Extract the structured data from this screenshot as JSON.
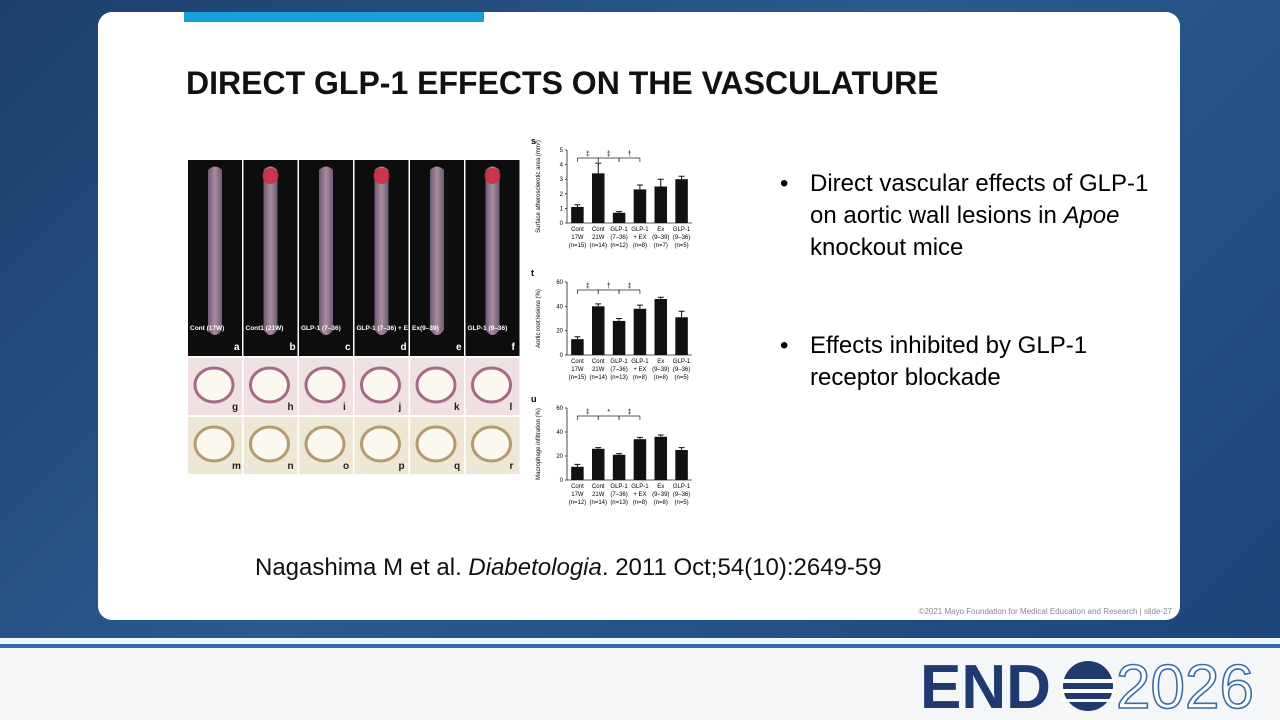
{
  "slide": {
    "title": "DIRECT GLP-1 EFFECTS ON THE VASCULATURE",
    "bullets": [
      {
        "parts": [
          {
            "text": "Direct vascular effects of GLP-1 on aortic wall lesions in "
          },
          {
            "text": "Apoe",
            "italic": true
          },
          {
            "text": " knockout mice"
          }
        ]
      },
      {
        "parts": [
          {
            "text": "Effects inhibited by GLP-1 receptor blockade"
          }
        ]
      }
    ],
    "citation": {
      "parts": [
        {
          "text": "Nagashima M et al. "
        },
        {
          "text": "Diabetologia",
          "italic": true
        },
        {
          "text": ". 2011 Oct;54(10):2649-59"
        }
      ]
    },
    "footer": "©2021 Mayo Foundation for Medical Education and Research  |  slide-27",
    "figure": {
      "photo_panels": [
        {
          "letter": "a",
          "name": "Cont (17W)"
        },
        {
          "letter": "b",
          "name": "Cont1 (21W)"
        },
        {
          "letter": "c",
          "name": "GLP-1 (7–36)"
        },
        {
          "letter": "d",
          "name": "GLP-1 (7–36) + Ex(9–39)"
        },
        {
          "letter": "e",
          "name": "Ex(9–39)"
        },
        {
          "letter": "f",
          "name": "GLP-1 (9–36)"
        }
      ],
      "histology_rows": [
        [
          "g",
          "h",
          "i",
          "j",
          "k",
          "l"
        ],
        [
          "m",
          "n",
          "o",
          "p",
          "q",
          "r"
        ]
      ],
      "charts": [
        {
          "type": "bar",
          "panel": "s",
          "ylabel": "Surface atherosclerotic area (mm²)",
          "color": "#111111",
          "ylim": [
            0,
            5
          ],
          "yticks": [
            0,
            1,
            2,
            3,
            4,
            5
          ],
          "values": [
            1.1,
            3.4,
            0.7,
            2.3,
            2.5,
            3.0
          ],
          "errors": [
            0.15,
            0.7,
            0.08,
            0.3,
            0.5,
            0.2
          ],
          "significance": [
            "‡",
            "‡",
            "†"
          ],
          "categories": [
            [
              "Cont",
              "17W",
              "(n=15)"
            ],
            [
              "Cont",
              "21W",
              "(n=14)"
            ],
            [
              "GLP-1",
              "(7–36)",
              "(n=12)"
            ],
            [
              "GLP-1",
              "+ EX",
              "(n=8)"
            ],
            [
              "Ex",
              "(9–39)",
              "(n=7)"
            ],
            [
              "GLP-1",
              "(9–36)",
              "(n=5)"
            ]
          ]
        },
        {
          "type": "bar",
          "panel": "t",
          "ylabel": "Aortic root lesions (%)",
          "color": "#111111",
          "ylim": [
            0,
            60
          ],
          "yticks": [
            0,
            20,
            40,
            60
          ],
          "values": [
            13,
            40,
            28,
            38,
            46,
            31
          ],
          "errors": [
            2,
            2,
            2,
            3,
            1.5,
            5
          ],
          "significance": [
            "‡",
            "†",
            "‡"
          ],
          "categories": [
            [
              "Cont",
              "17W",
              "(n=15)"
            ],
            [
              "Cont",
              "21W",
              "(n=14)"
            ],
            [
              "GLP-1",
              "(7–36)",
              "(n=13)"
            ],
            [
              "GLP-1",
              "+ EX",
              "(n=8)"
            ],
            [
              "Ex",
              "(9–39)",
              "(n=8)"
            ],
            [
              "GLP-1",
              "(9–36)",
              "(n=5)"
            ]
          ]
        },
        {
          "type": "bar",
          "panel": "u",
          "ylabel": "Macrophage infiltration (%)",
          "color": "#111111",
          "ylim": [
            0,
            60
          ],
          "yticks": [
            0,
            20,
            40,
            60
          ],
          "values": [
            11,
            26,
            21,
            34,
            36,
            25
          ],
          "errors": [
            2,
            1,
            1,
            1.5,
            1.5,
            2
          ],
          "significance": [
            "‡",
            "*",
            "‡"
          ],
          "categories": [
            [
              "Cont",
              "17W",
              "(n=12)"
            ],
            [
              "Cont",
              "21W",
              "(n=14)"
            ],
            [
              "GLP-1",
              "(7–36)",
              "(n=13)"
            ],
            [
              "GLP-1",
              "+ EX",
              "(n=8)"
            ],
            [
              "Ex",
              "(9–39)",
              "(n=8)"
            ],
            [
              "GLP-1",
              "(9–36)",
              "(n=5)"
            ]
          ]
        }
      ]
    },
    "logo": {
      "left": "END",
      "right": "2026"
    }
  }
}
